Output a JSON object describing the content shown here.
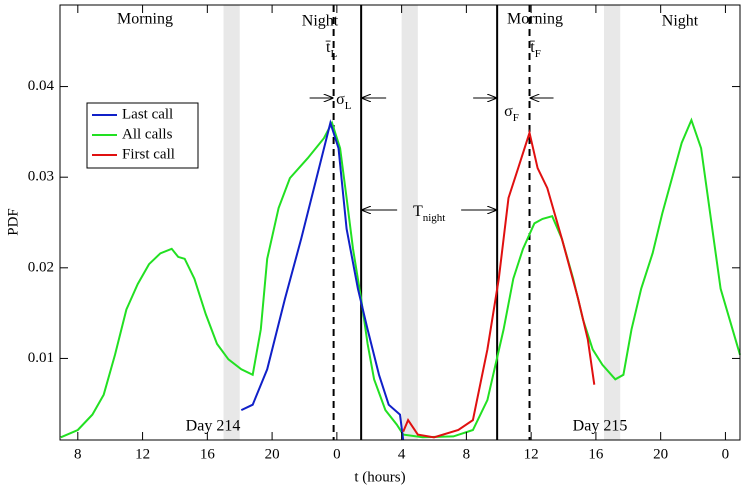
{
  "chart_data": {
    "type": "line",
    "xlabel": "t (hours)",
    "ylabel": "PDF",
    "xlim": [
      6.9,
      48.9
    ],
    "ylim": [
      0.001,
      0.049
    ],
    "xticks": [
      8,
      12,
      16,
      20,
      {
        "value": 24,
        "label": "0"
      },
      {
        "value": 28,
        "label": "4"
      },
      {
        "value": 32,
        "label": "8"
      },
      {
        "value": 36,
        "label": "12"
      },
      {
        "value": 40,
        "label": "16"
      },
      {
        "value": 44,
        "label": "20"
      },
      {
        "value": 48,
        "label": "0"
      }
    ],
    "yticks": [
      0.01,
      0.02,
      0.03,
      0.04
    ],
    "legend": "upper left",
    "bands": [
      [
        17,
        18
      ],
      [
        28,
        29
      ],
      [
        40.5,
        41.5
      ]
    ],
    "vlines": [
      {
        "x": 23.8,
        "style": "dashed"
      },
      {
        "x": 25.5,
        "style": "solid"
      },
      {
        "x": 33.9,
        "style": "solid"
      },
      {
        "x": 35.9,
        "style": "dashed"
      }
    ],
    "annotations": [
      {
        "text": "Morning"
      },
      {
        "text": "Night"
      },
      {
        "text": "Morning"
      },
      {
        "text": "Night"
      },
      {
        "text": "Day 214"
      },
      {
        "text": "Day 215"
      },
      {
        "text": "t̄",
        "sub": "L"
      },
      {
        "text": "σ",
        "sub": "L"
      },
      {
        "text": "T",
        "sub": "night"
      },
      {
        "text": "σ",
        "sub": "F"
      },
      {
        "text": "t̄",
        "sub": "F"
      }
    ],
    "series": [
      {
        "name": "Last call",
        "color": "#1020c8",
        "x": [
          18.1,
          18.8,
          19.7,
          20.8,
          21.8,
          22.9,
          23.6,
          24.1,
          24.6,
          25.3,
          25.9,
          26.6,
          27.2,
          27.9,
          28.1
        ],
        "values": [
          0.0043,
          0.0049,
          0.0088,
          0.0166,
          0.0232,
          0.031,
          0.036,
          0.0332,
          0.0243,
          0.0177,
          0.0132,
          0.0082,
          0.0049,
          0.0038,
          0.001
        ]
      },
      {
        "name": "All calls",
        "color": "#22e022",
        "x": [
          6.95,
          8,
          8.9,
          9.6,
          10.3,
          11,
          11.7,
          12.4,
          13.1,
          13.8,
          14.2,
          14.6,
          15.2,
          15.9,
          16.6,
          17.3,
          18.1,
          18.8,
          19.3,
          19.7,
          20.4,
          21.1,
          22.2,
          23.2,
          23.7,
          24.2,
          24.6,
          25,
          25.5,
          25.9,
          26.3,
          27,
          27.7,
          28.1,
          29.3,
          31.2,
          32.4,
          33.3,
          34.3,
          34.9,
          35.5,
          36.2,
          36.7,
          37.3,
          37.9,
          38.6,
          39.2,
          39.8,
          40.4,
          41.2,
          41.7,
          42.2,
          42.8,
          43.5,
          44.1,
          44.7,
          45.3,
          45.9,
          46.5,
          47.1,
          47.7,
          48.9
        ],
        "values": [
          0.0013,
          0.0021,
          0.0038,
          0.006,
          0.0104,
          0.0154,
          0.0182,
          0.0204,
          0.0216,
          0.0221,
          0.0212,
          0.021,
          0.0188,
          0.0149,
          0.0116,
          0.0099,
          0.0088,
          0.0082,
          0.0132,
          0.021,
          0.0266,
          0.0299,
          0.0321,
          0.0343,
          0.036,
          0.0332,
          0.0277,
          0.0221,
          0.0166,
          0.0116,
          0.0077,
          0.0043,
          0.0027,
          0.0016,
          0.0013,
          0.0014,
          0.0021,
          0.0054,
          0.0132,
          0.0188,
          0.0221,
          0.0249,
          0.0254,
          0.0257,
          0.0232,
          0.0188,
          0.0143,
          0.011,
          0.0093,
          0.0077,
          0.0082,
          0.0132,
          0.0177,
          0.0216,
          0.026,
          0.0299,
          0.0338,
          0.0363,
          0.0332,
          0.0254,
          0.0177,
          0.0104
        ]
      },
      {
        "name": "First call",
        "color": "#e01010",
        "x": [
          28.1,
          28.4,
          29,
          30,
          31.5,
          32.4,
          33.3,
          34,
          34.6,
          35.2,
          35.9,
          36.4,
          37,
          37.9,
          38.9,
          39.5,
          39.9
        ],
        "values": [
          0.0019,
          0.0032,
          0.0016,
          0.0013,
          0.0021,
          0.0032,
          0.011,
          0.0188,
          0.0277,
          0.031,
          0.0349,
          0.031,
          0.0288,
          0.0232,
          0.0166,
          0.0121,
          0.0071
        ]
      }
    ]
  }
}
